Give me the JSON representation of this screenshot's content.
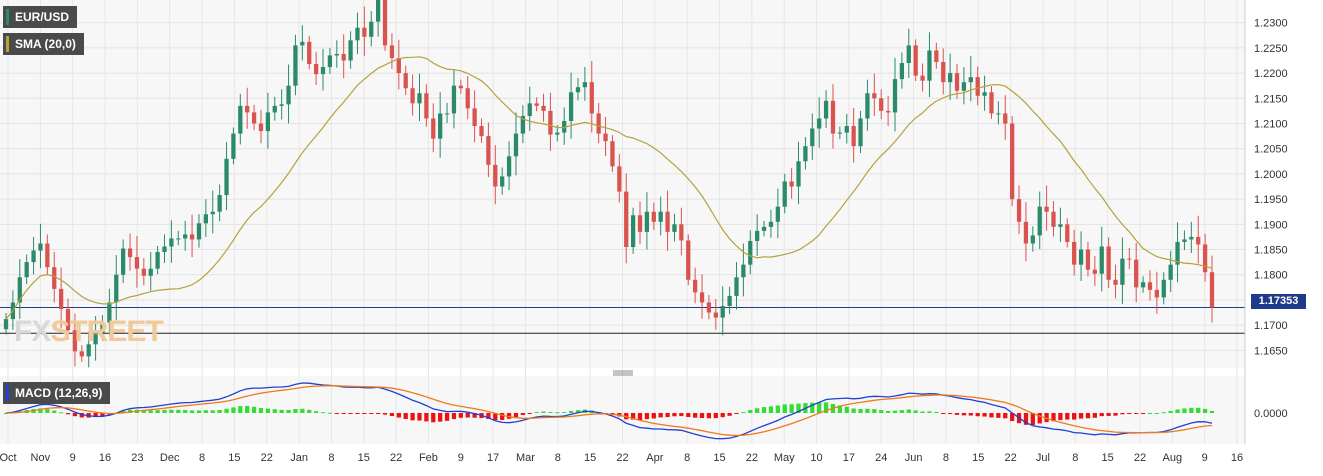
{
  "legend": {
    "symbol": "EUR/USD",
    "sma_label": "SMA (20,0)",
    "macd_label": "MACD (12,26,9)"
  },
  "current_price": "1.17353",
  "watermark": {
    "part1": "FX",
    "part2": "STREET"
  },
  "colors": {
    "up": "#2a8a6a",
    "down": "#d9534f",
    "sma": "#b5a23a",
    "price_line": "#1e3a8a",
    "macd": "#1f3fd6",
    "signal": "#f07a1a",
    "hist_up": "#33dd33",
    "hist_down": "#ee1111"
  },
  "chart_data": {
    "type": "candlestick",
    "symbol": "EUR/USD",
    "timeframe": "daily",
    "y_axis": {
      "range": [
        1.1615,
        1.2345
      ],
      "ticks": [
        "1.2300",
        "1.2250",
        "1.2200",
        "1.2150",
        "1.2100",
        "1.2050",
        "1.2000",
        "1.1950",
        "1.1900",
        "1.1850",
        "1.1800",
        "1.1750",
        "1.1700",
        "1.1650"
      ]
    },
    "x_labels": [
      "Oct",
      "Nov",
      "9",
      "16",
      "23",
      "Dec",
      "8",
      "15",
      "22",
      "Jan",
      "8",
      "15",
      "22",
      "Feb",
      "9",
      "17",
      "Mar",
      "8",
      "15",
      "22",
      "Apr",
      "8",
      "15",
      "22",
      "May",
      "10",
      "17",
      "24",
      "Jun",
      "8",
      "15",
      "22",
      "Jul",
      "8",
      "15",
      "22",
      "Aug",
      "9",
      "16"
    ],
    "horizontal_lines": [
      1.1735,
      1.1684
    ],
    "closes": [
      1.1712,
      1.1745,
      1.1795,
      1.1825,
      1.1848,
      1.1862,
      1.1815,
      1.1772,
      1.1732,
      1.169,
      1.1648,
      1.1638,
      1.1662,
      1.1682,
      1.1705,
      1.1745,
      1.18,
      1.1852,
      1.1835,
      1.1812,
      1.1798,
      1.1812,
      1.1845,
      1.1856,
      1.1872,
      1.1872,
      1.188,
      1.187,
      1.1902,
      1.192,
      1.1925,
      1.1958,
      1.203,
      1.208,
      1.2135,
      1.2122,
      1.21,
      1.2085,
      1.2122,
      1.2135,
      1.2138,
      1.2175,
      1.2255,
      1.2262,
      1.2218,
      1.2198,
      1.2212,
      1.2235,
      1.2238,
      1.2225,
      1.2265,
      1.229,
      1.2272,
      1.2302,
      1.2345,
      1.2255,
      1.223,
      1.22,
      1.217,
      1.214,
      1.216,
      1.211,
      1.207,
      1.212,
      1.212,
      1.2175,
      1.217,
      1.213,
      1.2095,
      1.2075,
      1.2018,
      1.1975,
      1.1995,
      1.2035,
      1.208,
      1.2115,
      1.214,
      1.2135,
      1.2125,
      1.2078,
      1.2082,
      1.2105,
      1.2162,
      1.2172,
      1.2182,
      1.212,
      1.208,
      1.2065,
      1.2015,
      1.1965,
      1.1855,
      1.1918,
      1.1885,
      1.1925,
      1.1905,
      1.1925,
      1.1885,
      1.19,
      1.1868,
      1.179,
      1.1765,
      1.1745,
      1.1725,
      1.1715,
      1.1738,
      1.1758,
      1.1795,
      1.182,
      1.1867,
      1.1887,
      1.1895,
      1.1905,
      1.1935,
      1.1985,
      1.1975,
      1.2025,
      1.2055,
      1.209,
      1.211,
      1.2145,
      1.208,
      1.2082,
      1.2095,
      1.2055,
      1.211,
      1.216,
      1.215,
      1.2125,
      1.2122,
      1.2188,
      1.222,
      1.2255,
      1.2195,
      1.2185,
      1.2245,
      1.2222,
      1.2182,
      1.22,
      1.2165,
      1.2182,
      1.2192,
      1.2155,
      1.2162,
      1.212,
      1.212,
      1.21,
      1.195,
      1.1905,
      1.1862,
      1.1878,
      1.1935,
      1.1925,
      1.1895,
      1.19,
      1.1865,
      1.182,
      1.185,
      1.181,
      1.1802,
      1.1856,
      1.179,
      1.178,
      1.1832,
      1.183,
      1.1775,
      1.1785,
      1.177,
      1.1755,
      1.179,
      1.182,
      1.1865,
      1.187,
      1.1875,
      1.186,
      1.1805,
      1.1735
    ],
    "sma_period": 20,
    "macd": {
      "params": [
        12,
        26,
        9
      ],
      "y_tick": "0.0000"
    }
  }
}
